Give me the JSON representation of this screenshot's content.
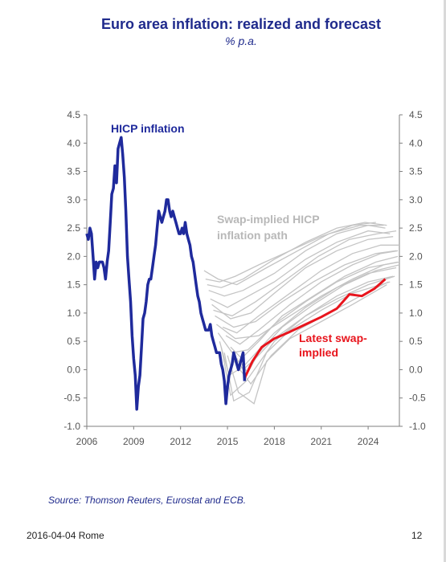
{
  "title": "Euro area inflation: realized and forecast",
  "subtitle": "% p.a.",
  "source": "Source: Thomson Reuters, Eurostat and ECB.",
  "footer": {
    "date_place": "2016-04-04 Rome",
    "page_number": "12"
  },
  "colors": {
    "title": "#1f2a8c",
    "hicp": "#1f2a9c",
    "latest": "#e8141c",
    "swap": "#c4c4c4"
  },
  "chart_data": {
    "type": "line",
    "x_ticks": [
      "2006",
      "2009",
      "2012",
      "2015",
      "2018",
      "2021",
      "2024"
    ],
    "y_ticks": [
      "4.5",
      "4.0",
      "3.5",
      "3.0",
      "2.5",
      "2.0",
      "1.5",
      "1.0",
      "0.5",
      "0.0",
      "-0.5",
      "-1.0"
    ],
    "xlim": [
      2006,
      2026
    ],
    "ylim": [
      -1.0,
      4.5
    ],
    "annotations": {
      "hicp": "HICP inflation",
      "swap_line1": "Swap-implied HICP",
      "swap_line2": "inflation path",
      "latest_line1": "Latest swap-",
      "latest_line2": "implied"
    },
    "hicp": {
      "x": [
        2006.0,
        2006.1,
        2006.2,
        2006.3,
        2006.4,
        2006.5,
        2006.6,
        2006.7,
        2006.8,
        2006.9,
        2007.0,
        2007.1,
        2007.2,
        2007.3,
        2007.4,
        2007.5,
        2007.6,
        2007.7,
        2007.8,
        2007.9,
        2008.0,
        2008.1,
        2008.2,
        2008.3,
        2008.4,
        2008.5,
        2008.55,
        2008.6,
        2008.7,
        2008.8,
        2008.9,
        2009.0,
        2009.1,
        2009.2,
        2009.3,
        2009.4,
        2009.5,
        2009.6,
        2009.7,
        2009.8,
        2009.9,
        2010.0,
        2010.1,
        2010.2,
        2010.3,
        2010.4,
        2010.5,
        2010.6,
        2010.7,
        2010.8,
        2010.9,
        2011.0,
        2011.1,
        2011.2,
        2011.3,
        2011.4,
        2011.5,
        2011.6,
        2011.7,
        2011.8,
        2011.9,
        2012.0,
        2012.1,
        2012.2,
        2012.3,
        2012.4,
        2012.5,
        2012.6,
        2012.7,
        2012.8,
        2012.9,
        2013.0,
        2013.1,
        2013.2,
        2013.3,
        2013.4,
        2013.5,
        2013.6,
        2013.7,
        2013.8,
        2013.9,
        2014.0,
        2014.1,
        2014.2,
        2014.3,
        2014.4,
        2014.5,
        2014.6,
        2014.7,
        2014.8,
        2014.9,
        2015.0,
        2015.1,
        2015.2,
        2015.3,
        2015.4,
        2015.5,
        2015.6,
        2015.7,
        2015.8,
        2015.9,
        2016.0,
        2016.1
      ],
      "y": [
        2.4,
        2.3,
        2.5,
        2.4,
        2.0,
        1.6,
        1.9,
        1.8,
        1.9,
        1.9,
        1.9,
        1.8,
        1.6,
        1.9,
        2.1,
        2.6,
        3.1,
        3.2,
        3.6,
        3.3,
        3.9,
        4.0,
        4.1,
        3.8,
        3.4,
        2.8,
        2.4,
        2.0,
        1.6,
        1.2,
        0.6,
        0.2,
        -0.1,
        -0.7,
        -0.3,
        -0.1,
        0.4,
        0.9,
        1.0,
        1.2,
        1.5,
        1.6,
        1.6,
        1.8,
        2.0,
        2.2,
        2.5,
        2.8,
        2.7,
        2.6,
        2.7,
        2.8,
        3.0,
        3.0,
        2.8,
        2.7,
        2.8,
        2.7,
        2.6,
        2.5,
        2.4,
        2.4,
        2.5,
        2.4,
        2.6,
        2.4,
        2.3,
        2.2,
        2.0,
        1.9,
        1.7,
        1.5,
        1.3,
        1.2,
        1.0,
        0.9,
        0.8,
        0.7,
        0.7,
        0.7,
        0.8,
        0.6,
        0.5,
        0.4,
        0.3,
        0.3,
        0.3,
        0.1,
        0.0,
        -0.2,
        -0.6,
        -0.3,
        -0.1,
        0.0,
        0.1,
        0.3,
        0.2,
        0.1,
        0.0,
        0.1,
        0.2,
        0.3,
        -0.2
      ]
    },
    "latest_swap_implied": {
      "x": [
        2016.1,
        2016.6,
        2017.2,
        2018.0,
        2019.0,
        2020.0,
        2021.0,
        2022.0,
        2022.8,
        2023.6,
        2024.4,
        2025.1
      ],
      "y": [
        -0.15,
        0.15,
        0.4,
        0.55,
        0.67,
        0.8,
        0.93,
        1.08,
        1.33,
        1.3,
        1.43,
        1.6
      ]
    },
    "swap_implied_paths": [
      {
        "x": [
          2013.6,
          2014.5,
          2015.5,
          2017,
          2019,
          2021,
          2023,
          2024.5
        ],
        "y": [
          1.6,
          1.55,
          1.65,
          1.85,
          2.1,
          2.35,
          2.55,
          2.6
        ]
      },
      {
        "x": [
          2013.8,
          2014.8,
          2016,
          2018,
          2020,
          2022,
          2024,
          2025.1
        ],
        "y": [
          1.4,
          1.3,
          1.4,
          1.7,
          2.1,
          2.4,
          2.55,
          2.5
        ]
      },
      {
        "x": [
          2013.9,
          2015,
          2016,
          2018,
          2020,
          2022,
          2024,
          2025.4
        ],
        "y": [
          1.25,
          1.1,
          1.25,
          1.55,
          1.95,
          2.25,
          2.45,
          2.4
        ]
      },
      {
        "x": [
          2014,
          2015.2,
          2016.5,
          2018,
          2020,
          2022,
          2024,
          2025.6
        ],
        "y": [
          1.15,
          0.9,
          1.0,
          1.35,
          1.8,
          2.1,
          2.3,
          2.35
        ]
      },
      {
        "x": [
          2014.2,
          2015.4,
          2016.8,
          2018.5,
          2020.5,
          2022.5,
          2024.5,
          2025.8
        ],
        "y": [
          0.95,
          0.75,
          0.85,
          1.2,
          1.55,
          1.85,
          2.05,
          2.1
        ]
      },
      {
        "x": [
          2014.3,
          2015.5,
          2017,
          2019,
          2021,
          2023,
          2025,
          2026
        ],
        "y": [
          0.8,
          0.55,
          0.6,
          0.95,
          1.3,
          1.6,
          1.85,
          1.9
        ]
      },
      {
        "x": [
          2014.4,
          2015.3,
          2016.3,
          2018,
          2020,
          2022,
          2024,
          2025.9
        ],
        "y": [
          0.65,
          0.3,
          0.35,
          0.8,
          1.2,
          1.55,
          1.8,
          1.9
        ]
      },
      {
        "x": [
          2014.5,
          2015.1,
          2016,
          2018,
          2020,
          2022,
          2024,
          2025.8
        ],
        "y": [
          0.5,
          -0.1,
          0.05,
          0.65,
          1.1,
          1.45,
          1.7,
          1.8
        ]
      },
      {
        "x": [
          2014.6,
          2015.2,
          2016.2,
          2018,
          2020,
          2022,
          2024,
          2025.6
        ],
        "y": [
          0.4,
          -0.45,
          -0.2,
          0.5,
          0.95,
          1.3,
          1.55,
          1.65
        ]
      },
      {
        "x": [
          2014.8,
          2015.4,
          2016.4,
          2017.5,
          2019,
          2021,
          2023,
          2025.4
        ],
        "y": [
          0.3,
          -0.55,
          -0.4,
          0.3,
          0.7,
          1.05,
          1.35,
          1.55
        ]
      },
      {
        "x": [
          2015,
          2015.7,
          2016.7,
          2017.5,
          2019,
          2021,
          2023,
          2025.2
        ],
        "y": [
          0.25,
          -0.4,
          -0.6,
          0.15,
          0.55,
          0.85,
          1.15,
          1.5
        ]
      },
      {
        "x": [
          2015.3,
          2015.8,
          2016.5,
          2017.8,
          2019.5,
          2021.5,
          2023.5,
          2025.3
        ],
        "y": [
          0.2,
          0.0,
          -0.25,
          0.25,
          0.7,
          1.0,
          1.3,
          1.55
        ]
      },
      {
        "x": [
          2015.6,
          2016,
          2016.8,
          2018,
          2020,
          2022,
          2024,
          2025.7
        ],
        "y": [
          0.2,
          0.0,
          0.2,
          0.55,
          0.95,
          1.25,
          1.5,
          1.65
        ]
      },
      {
        "x": [
          2015.9,
          2016.3,
          2017,
          2018.5,
          2020.5,
          2022.5,
          2024.5,
          2026
        ],
        "y": [
          0.1,
          -0.05,
          0.3,
          0.75,
          1.15,
          1.5,
          1.75,
          1.85
        ]
      },
      {
        "x": [
          2014.9,
          2015.8,
          2017,
          2019,
          2021,
          2023,
          2024.8,
          2025.9
        ],
        "y": [
          0.6,
          0.45,
          0.7,
          1.15,
          1.55,
          1.85,
          2.05,
          2.1
        ]
      },
      {
        "x": [
          2014.7,
          2015.6,
          2017,
          2019,
          2021,
          2023,
          2024.8,
          2026
        ],
        "y": [
          0.75,
          0.65,
          0.95,
          1.35,
          1.75,
          2.05,
          2.2,
          2.2
        ]
      },
      {
        "x": [
          2014.1,
          2015.3,
          2016.8,
          2018.8,
          2020.8,
          2022.8,
          2024.6,
          2025.8
        ],
        "y": [
          1.05,
          0.95,
          1.2,
          1.6,
          2.0,
          2.3,
          2.4,
          2.45
        ]
      },
      {
        "x": [
          2013.7,
          2014.6,
          2016,
          2018,
          2020,
          2022,
          2023.8,
          2025.2
        ],
        "y": [
          1.5,
          1.45,
          1.6,
          1.95,
          2.25,
          2.5,
          2.6,
          2.55
        ]
      },
      {
        "x": [
          2015.2,
          2015.9,
          2017,
          2018.5,
          2020.5,
          2022.5,
          2024.5,
          2025.9
        ],
        "y": [
          0.4,
          0.2,
          0.5,
          0.95,
          1.3,
          1.65,
          1.9,
          2.0
        ]
      },
      {
        "x": [
          2013.5,
          2014.4,
          2015.6,
          2017.5,
          2019.5,
          2021.5,
          2023.5,
          2025
        ],
        "y": [
          1.75,
          1.6,
          1.5,
          1.8,
          2.1,
          2.4,
          2.55,
          2.55
        ]
      }
    ]
  }
}
